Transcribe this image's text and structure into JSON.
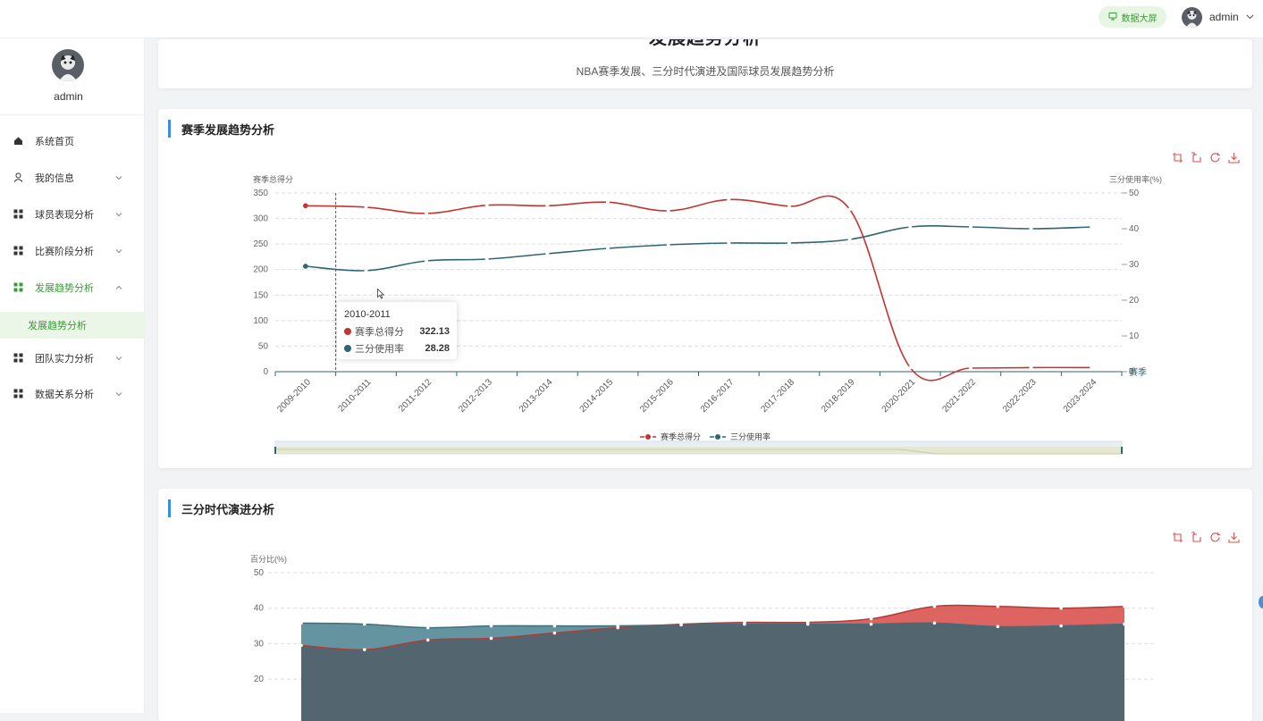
{
  "topbar": {
    "screen_button_label": "数据大屏",
    "screen_icon": "monitor-icon",
    "user_name": "admin",
    "user_chevron_icon": "chevron-down-icon"
  },
  "sidebar": {
    "user_name": "admin",
    "items": [
      {
        "label": "系统首页",
        "icon": "home-icon"
      },
      {
        "label": "我的信息",
        "icon": "user-icon",
        "expandable": true
      },
      {
        "label": "球员表现分析",
        "icon": "grid-icon",
        "expandable": true
      },
      {
        "label": "比赛阶段分析",
        "icon": "grid-icon",
        "expandable": true
      },
      {
        "label": "发展趋势分析",
        "icon": "grid-icon",
        "expandable": true,
        "active": true,
        "expanded": true
      },
      {
        "label": "团队实力分析",
        "icon": "grid-icon",
        "expandable": true
      },
      {
        "label": "数据关系分析",
        "icon": "grid-icon",
        "expandable": true
      }
    ],
    "active_sub_item": "发展趋势分析"
  },
  "header_card": {
    "title": "发展趋势分析",
    "subtitle": "NBA赛季发展、三分时代演进及国际球员发展趋势分析"
  },
  "section1": {
    "title": "赛季发展趋势分析",
    "toolbox_icons": [
      "zoom-icon",
      "zoom-reset-icon",
      "restore-icon",
      "download-icon"
    ],
    "tooltip": {
      "header": "2010-2011",
      "rows": [
        {
          "name": "赛季总得分",
          "value": "322.13",
          "color": "#c23531"
        },
        {
          "name": "三分使用率",
          "value": "28.28",
          "color": "#2f6673"
        }
      ]
    }
  },
  "section2": {
    "title": "三分时代演进分析",
    "toolbox_icons": [
      "zoom-icon",
      "zoom-reset-icon",
      "restore-icon",
      "download-icon"
    ]
  },
  "chart_data": [
    {
      "type": "line",
      "categories": [
        "2009-2010",
        "2010-2011",
        "2011-2012",
        "2012-2013",
        "2013-2014",
        "2014-2015",
        "2015-2016",
        "2016-2017",
        "2017-2018",
        "2018-2019",
        "2020-2021",
        "2021-2022",
        "2022-2023",
        "2023-2024"
      ],
      "series": [
        {
          "name": "赛季总得分",
          "axis": "left",
          "color": "#c23531",
          "values": [
            325,
            322.13,
            310,
            326,
            325,
            332,
            315,
            337,
            324,
            318,
            8,
            7,
            8,
            8
          ]
        },
        {
          "name": "三分使用率",
          "axis": "right",
          "color": "#2f6673",
          "values": [
            29.5,
            28.28,
            31,
            31.5,
            33,
            34.5,
            35.5,
            36,
            36,
            37,
            40.5,
            40.5,
            40,
            40.5
          ]
        }
      ],
      "ylabel": "赛季总得分",
      "ylabel_right": "三分使用率(%)",
      "xlabel": "赛季",
      "ylim": [
        0,
        350
      ],
      "yticks": [
        0,
        50,
        100,
        150,
        200,
        250,
        300,
        350
      ],
      "ylim_right": [
        0,
        50
      ],
      "yticks_right": [
        0,
        10,
        20,
        30,
        40,
        50
      ],
      "legend_position": "bottom",
      "grid": true,
      "data_zoom": true
    },
    {
      "type": "area",
      "series": [
        {
          "name": "",
          "color": "#d9534f",
          "values": [
            29.5,
            28.3,
            31,
            31.5,
            33,
            34.5,
            35.5,
            36,
            36,
            37,
            40.5,
            40.5,
            40,
            40.5
          ]
        },
        {
          "name": "",
          "color": "#5b8e9b",
          "values": [
            35.8,
            35.5,
            34.5,
            35,
            35,
            35,
            35.3,
            35.5,
            35.5,
            35.5,
            35.8,
            34.8,
            35,
            35.5
          ]
        }
      ],
      "ylabel": "百分比(%)",
      "yticks_visible": [
        20,
        30,
        40,
        50
      ],
      "ylim": [
        10,
        50
      ],
      "grid": true
    }
  ]
}
